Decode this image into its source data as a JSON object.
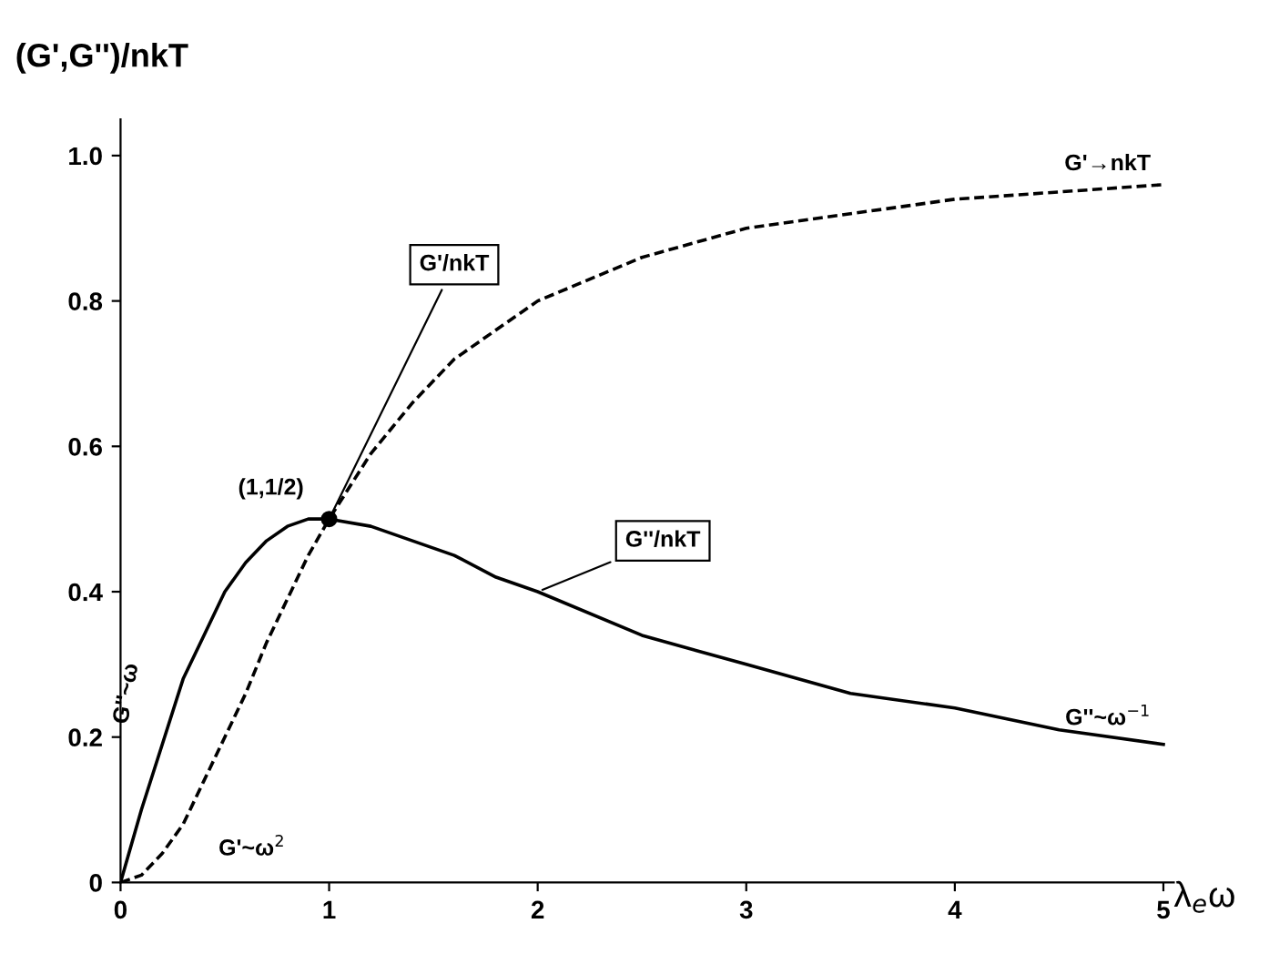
{
  "chart_data": {
    "type": "line",
    "xlabel": "λ$_{e}$ω",
    "ylabel": "(G',G'')/nkT",
    "xlim": [
      0,
      5.05
    ],
    "ylim": [
      0,
      1.05
    ],
    "xticks": [
      0,
      1,
      2,
      3,
      4,
      5
    ],
    "yticks": [
      0,
      0.2,
      0.4,
      0.6,
      0.8,
      {
        "value": 1,
        "label": "1.0"
      }
    ],
    "grid": false,
    "legend": false,
    "marker": "none",
    "series": [
      {
        "name": "G'/nkT",
        "color": "#000000",
        "line_style": "dashed",
        "x": [
          0,
          0.1,
          0.2,
          0.3,
          0.4,
          0.5,
          0.6,
          0.7,
          0.8,
          0.9,
          1,
          1.2,
          1.4,
          1.6,
          1.8,
          2,
          2.5,
          3,
          3.5,
          4,
          4.5,
          5
        ],
        "values": [
          0,
          0.01,
          0.04,
          0.08,
          0.14,
          0.2,
          0.26,
          0.33,
          0.39,
          0.45,
          0.5,
          0.59,
          0.66,
          0.72,
          0.76,
          0.8,
          0.86,
          0.9,
          0.92,
          0.94,
          0.95,
          0.96
        ]
      },
      {
        "name": "G''/nkT",
        "color": "#000000",
        "line_style": "solid",
        "x": [
          0,
          0.1,
          0.2,
          0.3,
          0.4,
          0.5,
          0.6,
          0.7,
          0.8,
          0.9,
          1,
          1.2,
          1.4,
          1.6,
          1.8,
          2,
          2.5,
          3,
          3.5,
          4,
          4.5,
          5
        ],
        "values": [
          0,
          0.1,
          0.19,
          0.28,
          0.34,
          0.4,
          0.44,
          0.47,
          0.49,
          0.5,
          0.5,
          0.49,
          0.47,
          0.45,
          0.42,
          0.4,
          0.34,
          0.3,
          0.26,
          0.24,
          0.21,
          0.19
        ]
      },
      {
        "type": "scatter",
        "color": "#000000",
        "marker": "circle",
        "x": [
          1
        ],
        "values": [
          0.5
        ]
      }
    ],
    "annotations": [
      {
        "text": "(1,1/2)",
        "x": 1,
        "y": 0.5
      },
      {
        "text": "G'→nkT",
        "x": 5,
        "y": 0.96
      },
      {
        "text": "G''~ω$^{−1}$",
        "x": 5,
        "y": 0.19
      },
      {
        "text": "G''~ω",
        "x": 0.2,
        "y": 0.19
      },
      {
        "text": "G'~ω$^{2}$",
        "x": 0.3,
        "y": 0.08
      }
    ]
  }
}
